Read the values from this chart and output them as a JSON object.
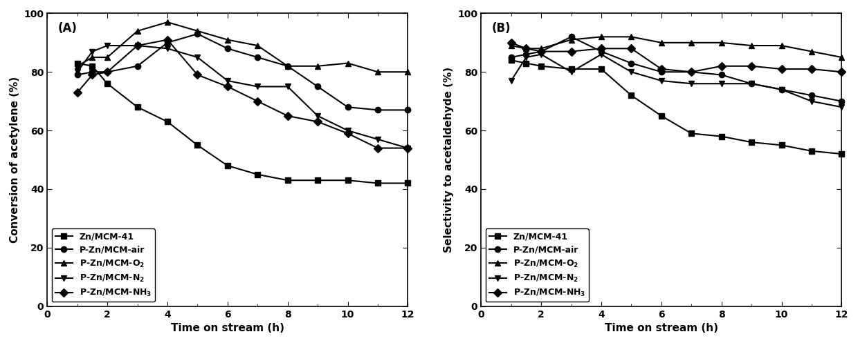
{
  "A": {
    "title": "(A)",
    "xlabel": "Time on stream (h)",
    "ylabel": "Conversion of acetylene (%)",
    "xlim": [
      0,
      12
    ],
    "ylim": [
      0,
      100
    ],
    "xticks": [
      0,
      2,
      4,
      6,
      8,
      10,
      12
    ],
    "yticks": [
      0,
      20,
      40,
      60,
      80,
      100
    ],
    "series": [
      {
        "label": "Zn/MCM-41",
        "marker": "s",
        "x": [
          1,
          1.5,
          2,
          3,
          4,
          5,
          6,
          7,
          8,
          9,
          10,
          11,
          12
        ],
        "y": [
          83,
          82,
          76,
          68,
          63,
          55,
          48,
          45,
          43,
          43,
          43,
          42,
          42
        ]
      },
      {
        "label": "P-Zn/MCM-air",
        "marker": "o",
        "x": [
          1,
          1.5,
          2,
          3,
          4,
          5,
          6,
          7,
          8,
          9,
          10,
          11,
          12
        ],
        "y": [
          79,
          80,
          80,
          82,
          90,
          93,
          88,
          85,
          82,
          75,
          68,
          67,
          67
        ]
      },
      {
        "label": "P-Zn/MCM-O$_2$",
        "marker": "^",
        "x": [
          1,
          1.5,
          2,
          3,
          4,
          5,
          6,
          7,
          8,
          9,
          10,
          11,
          12
        ],
        "y": [
          82,
          85,
          85,
          94,
          97,
          94,
          91,
          89,
          82,
          82,
          83,
          80,
          80
        ]
      },
      {
        "label": "P-Zn/MCM-N$_2$",
        "marker": "v",
        "x": [
          1,
          1.5,
          2,
          3,
          4,
          5,
          6,
          7,
          8,
          9,
          10,
          11,
          12
        ],
        "y": [
          80,
          87,
          89,
          89,
          88,
          85,
          77,
          75,
          75,
          65,
          60,
          57,
          54
        ]
      },
      {
        "label": "P-Zn/MCM-NH$_3$",
        "marker": "D",
        "x": [
          1,
          1.5,
          2,
          3,
          4,
          5,
          6,
          7,
          8,
          9,
          10,
          11,
          12
        ],
        "y": [
          73,
          79,
          80,
          89,
          91,
          79,
          75,
          70,
          65,
          63,
          59,
          54,
          54
        ]
      }
    ]
  },
  "B": {
    "title": "(B)",
    "xlabel": "Time on stream (h)",
    "ylabel": "Selectivity to acetaldehyde (%)",
    "xlim": [
      0,
      12
    ],
    "ylim": [
      0,
      100
    ],
    "xticks": [
      0,
      2,
      4,
      6,
      8,
      10,
      12
    ],
    "yticks": [
      0,
      20,
      40,
      60,
      80,
      100
    ],
    "series": [
      {
        "label": "Zn/MCM-41",
        "marker": "s",
        "x": [
          1,
          1.5,
          2,
          3,
          4,
          5,
          6,
          7,
          8,
          9,
          10,
          11,
          12
        ],
        "y": [
          84,
          83,
          82,
          81,
          81,
          72,
          65,
          59,
          58,
          56,
          55,
          53,
          52
        ]
      },
      {
        "label": "P-Zn/MCM-air",
        "marker": "o",
        "x": [
          1,
          1.5,
          2,
          3,
          4,
          5,
          6,
          7,
          8,
          9,
          10,
          11,
          12
        ],
        "y": [
          85,
          86,
          87,
          92,
          87,
          83,
          80,
          80,
          79,
          76,
          74,
          72,
          70
        ]
      },
      {
        "label": "P-Zn/MCM-O$_2$",
        "marker": "^",
        "x": [
          1,
          1.5,
          2,
          3,
          4,
          5,
          6,
          7,
          8,
          9,
          10,
          11,
          12
        ],
        "y": [
          89,
          88,
          88,
          91,
          92,
          92,
          90,
          90,
          90,
          89,
          89,
          87,
          85
        ]
      },
      {
        "label": "P-Zn/MCM-N$_2$",
        "marker": "v",
        "x": [
          1,
          1.5,
          2,
          3,
          4,
          5,
          6,
          7,
          8,
          9,
          10,
          11,
          12
        ],
        "y": [
          77,
          85,
          86,
          80,
          86,
          80,
          77,
          76,
          76,
          76,
          74,
          70,
          68
        ]
      },
      {
        "label": "P-Zn/MCM-NH$_3$",
        "marker": "D",
        "x": [
          1,
          1.5,
          2,
          3,
          4,
          5,
          6,
          7,
          8,
          9,
          10,
          11,
          12
        ],
        "y": [
          90,
          88,
          87,
          87,
          88,
          88,
          81,
          80,
          82,
          82,
          81,
          81,
          80
        ]
      }
    ]
  },
  "color": "black",
  "linewidth": 1.5,
  "markersize": 6,
  "fontsize_label": 11,
  "fontsize_tick": 10,
  "fontsize_title": 12,
  "fontsize_legend": 9
}
